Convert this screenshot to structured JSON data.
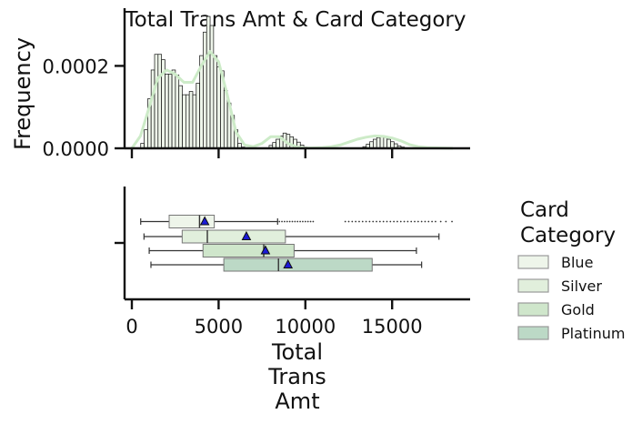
{
  "chart_data": [
    {
      "type": "histogram",
      "title": "Total Trans Amt & Card Category",
      "ylabel": "Frequency",
      "xlim": [
        0,
        18500
      ],
      "ylim": [
        0,
        0.00034
      ],
      "y_ticks": [
        "0.0000",
        "0.0002"
      ],
      "y_tick_values": [
        0,
        0.0002
      ],
      "bins": {
        "start": 510,
        "width": 200,
        "heights": [
          1.2e-05,
          4.5e-05,
          0.00012,
          0.00019,
          0.000228,
          0.000228,
          0.000215,
          0.00018,
          0.00018,
          0.00019,
          0.000178,
          0.000152,
          0.00013,
          0.00013,
          0.000138,
          0.00013,
          0.000158,
          0.000225,
          0.000282,
          0.00032,
          0.000298,
          0.000225,
          0.000198,
          0.000188,
          0.00014,
          0.00011,
          8e-05,
          4.5e-05,
          1.2e-05,
          3e-06,
          0,
          0,
          0,
          0,
          0,
          0,
          0,
          7e-06,
          1.4e-05,
          2.2e-05,
          3e-05,
          3.7e-05,
          3.4e-05,
          2.8e-05,
          2.2e-05,
          1.5e-05,
          8e-06,
          3e-06,
          0,
          0,
          0,
          0,
          0,
          0,
          0,
          0,
          0,
          0,
          0,
          0,
          0,
          0,
          0,
          0,
          4e-06,
          1e-05,
          1.6e-05,
          2.2e-05,
          2.6e-05,
          2.8e-05,
          2.6e-05,
          2.2e-05,
          1.6e-05,
          1.1e-05,
          6e-06,
          3e-06
        ]
      },
      "kde": {
        "x": [
          0,
          500,
          1000,
          1500,
          2000,
          2500,
          3000,
          3500,
          4000,
          4500,
          5000,
          5500,
          6000,
          6500,
          7000,
          7500,
          8000,
          8500,
          9000,
          9500,
          10000,
          10500,
          11000,
          11500,
          12000,
          12500,
          13000,
          13500,
          14000,
          14500,
          15000,
          15500,
          16000,
          16500,
          17000,
          17500,
          18000,
          18500
        ],
        "y": [
          0,
          3e-05,
          0.0001,
          0.00017,
          0.00019,
          0.00018,
          0.00016,
          0.00016,
          0.0002,
          0.000235,
          0.00021,
          0.00013,
          4e-05,
          8e-06,
          4e-06,
          1.2e-05,
          2.8e-05,
          2.8e-05,
          1.2e-05,
          3e-06,
          5e-07,
          1e-06,
          2e-06,
          4e-06,
          8e-06,
          1.5e-05,
          2.2e-05,
          2.7e-05,
          3e-05,
          2.9e-05,
          2.5e-05,
          1.8e-05,
          9e-06,
          4e-06,
          2e-06,
          1e-06,
          5e-07,
          0
        ],
        "color": "#cdebc8"
      },
      "bar_color": "#eef5ea",
      "bar_edge": "#111111"
    },
    {
      "type": "boxplot",
      "xlabel": [
        "Total",
        "Trans",
        "Amt"
      ],
      "xlim": [
        0,
        18500
      ],
      "x_ticks": [
        "0",
        "5000",
        "10000",
        "15000"
      ],
      "x_tick_values": [
        0,
        5000,
        10000,
        15000
      ],
      "legend_title": [
        "Card",
        "Category"
      ],
      "legend_position": "right",
      "series": [
        {
          "name": "Blue",
          "whisker_low": 510,
          "q1": 2150,
          "median": 3900,
          "q3": 4750,
          "whisker_high": 8400,
          "mean": 4200,
          "color": "#eef5ea",
          "outliers_x": [
            8500,
            8650,
            8800,
            8950,
            9100,
            9250,
            9400,
            9550,
            9700,
            9850,
            10000,
            10150,
            10300,
            10450,
            12300,
            12500,
            12700,
            12900,
            13100,
            13300,
            13500,
            13700,
            13900,
            14100,
            14300,
            14500,
            14700,
            14900,
            15100,
            15300,
            15500,
            15700,
            15900,
            16100,
            16300,
            16500,
            16700,
            16900,
            17100,
            17300,
            17500,
            17800,
            18100,
            18450
          ]
        },
        {
          "name": "Silver",
          "whisker_low": 700,
          "q1": 2900,
          "median": 4350,
          "q3": 8850,
          "whisker_high": 17700,
          "mean": 6600,
          "color": "#e1efdc"
        },
        {
          "name": "Gold",
          "whisker_low": 1000,
          "q1": 4100,
          "median": 7600,
          "q3": 9350,
          "whisker_high": 16400,
          "mean": 7700,
          "color": "#cfe6cb"
        },
        {
          "name": "Platinum",
          "whisker_low": 1100,
          "q1": 5300,
          "median": 8450,
          "q3": 13850,
          "whisker_high": 16700,
          "mean": 9000,
          "color": "#bcd9c6"
        }
      ]
    }
  ]
}
